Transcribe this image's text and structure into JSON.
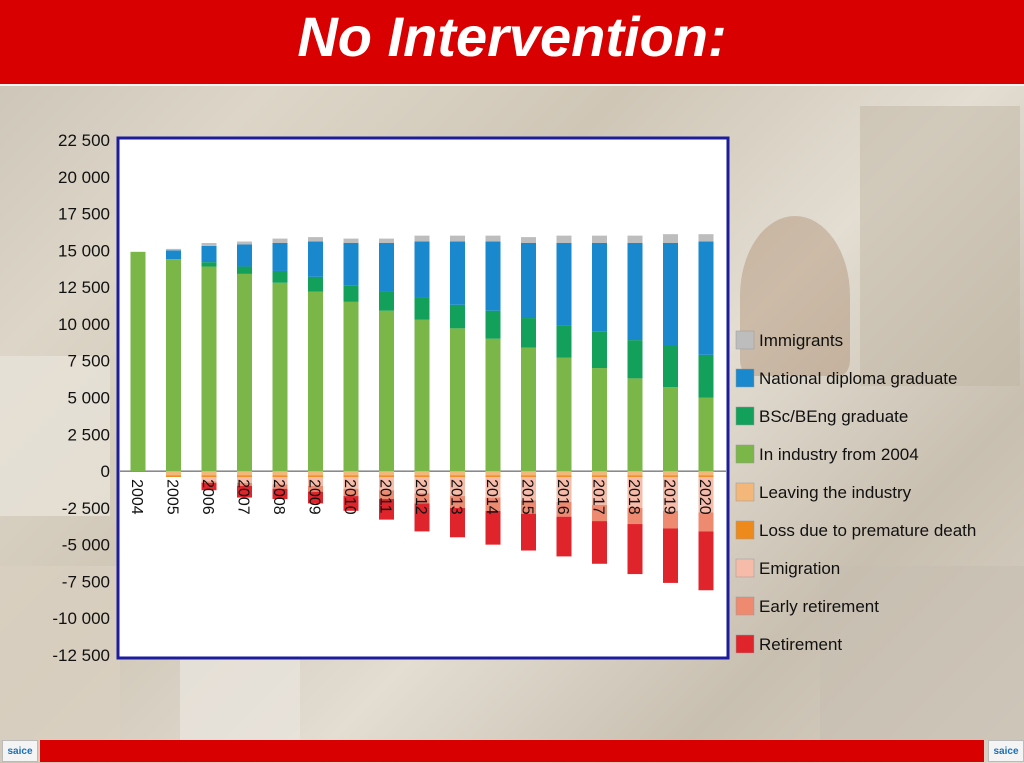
{
  "page": {
    "title": "No Intervention:",
    "logo_left": "saice",
    "logo_right": "saice"
  },
  "colors": {
    "title_bar": "#d80000",
    "plot_border": "#1c1c9c",
    "Immigrants": "#bdbdbd",
    "National diploma graduate": "#1a88cc",
    "BSc/BEng graduate": "#13a05a",
    "In industry from 2004": "#7ab648",
    "Leaving the industry": "#f3b77a",
    "Loss due to premature death": "#ee8a1c",
    "Emigration": "#f6bca9",
    "Early retirement": "#ee8a70",
    "Retirement": "#e0242b"
  },
  "chart_data": {
    "type": "bar",
    "stacked": true,
    "categories": [
      "2004",
      "2005",
      "2006",
      "2007",
      "2008",
      "2009",
      "2010",
      "2011",
      "2012",
      "2013",
      "2014",
      "2015",
      "2016",
      "2017",
      "2018",
      "2019",
      "2020"
    ],
    "ylim": [
      -12500,
      22500
    ],
    "yticks": [
      "22 500",
      "20 000",
      "17 500",
      "15 000",
      "12 500",
      "10 000",
      "7 500",
      "5 000",
      "2 500",
      "0",
      "-2 500",
      "-5 000",
      "-7 500",
      "-10 000",
      "-12 500"
    ],
    "ytick_values": [
      22500,
      20000,
      17500,
      15000,
      12500,
      10000,
      7500,
      5000,
      2500,
      0,
      -2500,
      -5000,
      -7500,
      -10000,
      -12500
    ],
    "grid": false,
    "legend_position": "right",
    "legend": [
      "Immigrants",
      "National diploma graduate",
      "BSc/BEng graduate",
      "In industry from 2004",
      "Leaving the industry",
      "Loss due to premature death",
      "Emigration",
      "Early retirement",
      "Retirement"
    ],
    "positive_series": [
      {
        "name": "In industry from 2004",
        "values": [
          14900,
          14400,
          13900,
          13400,
          12800,
          12200,
          11500,
          10900,
          10300,
          9700,
          9000,
          8400,
          7700,
          7000,
          6300,
          5700,
          5000
        ]
      },
      {
        "name": "BSc/BEng graduate",
        "values": [
          0,
          0,
          300,
          500,
          800,
          1000,
          1100,
          1300,
          1500,
          1600,
          1900,
          2000,
          2200,
          2500,
          2600,
          2800,
          2900
        ]
      },
      {
        "name": "National diploma graduate",
        "values": [
          0,
          600,
          1100,
          1500,
          1900,
          2400,
          2900,
          3300,
          3800,
          4300,
          4700,
          5100,
          5600,
          6000,
          6600,
          7000,
          7700
        ]
      },
      {
        "name": "Immigrants",
        "values": [
          0,
          100,
          200,
          200,
          300,
          300,
          300,
          300,
          400,
          400,
          400,
          400,
          500,
          500,
          500,
          600,
          500
        ]
      }
    ],
    "negative_series": [
      {
        "name": "Leaving the industry",
        "values": [
          0,
          -300,
          -300,
          -300,
          -300,
          -300,
          -300,
          -300,
          -300,
          -300,
          -300,
          -300,
          -300,
          -300,
          -300,
          -300,
          -300
        ]
      },
      {
        "name": "Loss due to premature death",
        "values": [
          0,
          -100,
          -100,
          -100,
          -100,
          -100,
          -100,
          -100,
          -100,
          -100,
          -100,
          -100,
          -100,
          -100,
          -100,
          -100,
          -100
        ]
      },
      {
        "name": "Emigration",
        "values": [
          0,
          0,
          -300,
          -400,
          -500,
          -600,
          -800,
          -900,
          -1100,
          -1300,
          -1400,
          -1600,
          -1700,
          -1900,
          -2100,
          -2300,
          -2400
        ]
      },
      {
        "name": "Early retirement",
        "values": [
          0,
          0,
          -100,
          -200,
          -300,
          -400,
          -500,
          -600,
          -700,
          -800,
          -900,
          -900,
          -1000,
          -1100,
          -1100,
          -1200,
          -1300
        ]
      },
      {
        "name": "Retirement",
        "values": [
          0,
          0,
          -500,
          -800,
          -700,
          -800,
          -1000,
          -1400,
          -1900,
          -2000,
          -2300,
          -2500,
          -2700,
          -2900,
          -3400,
          -3700,
          -4000
        ]
      }
    ]
  }
}
